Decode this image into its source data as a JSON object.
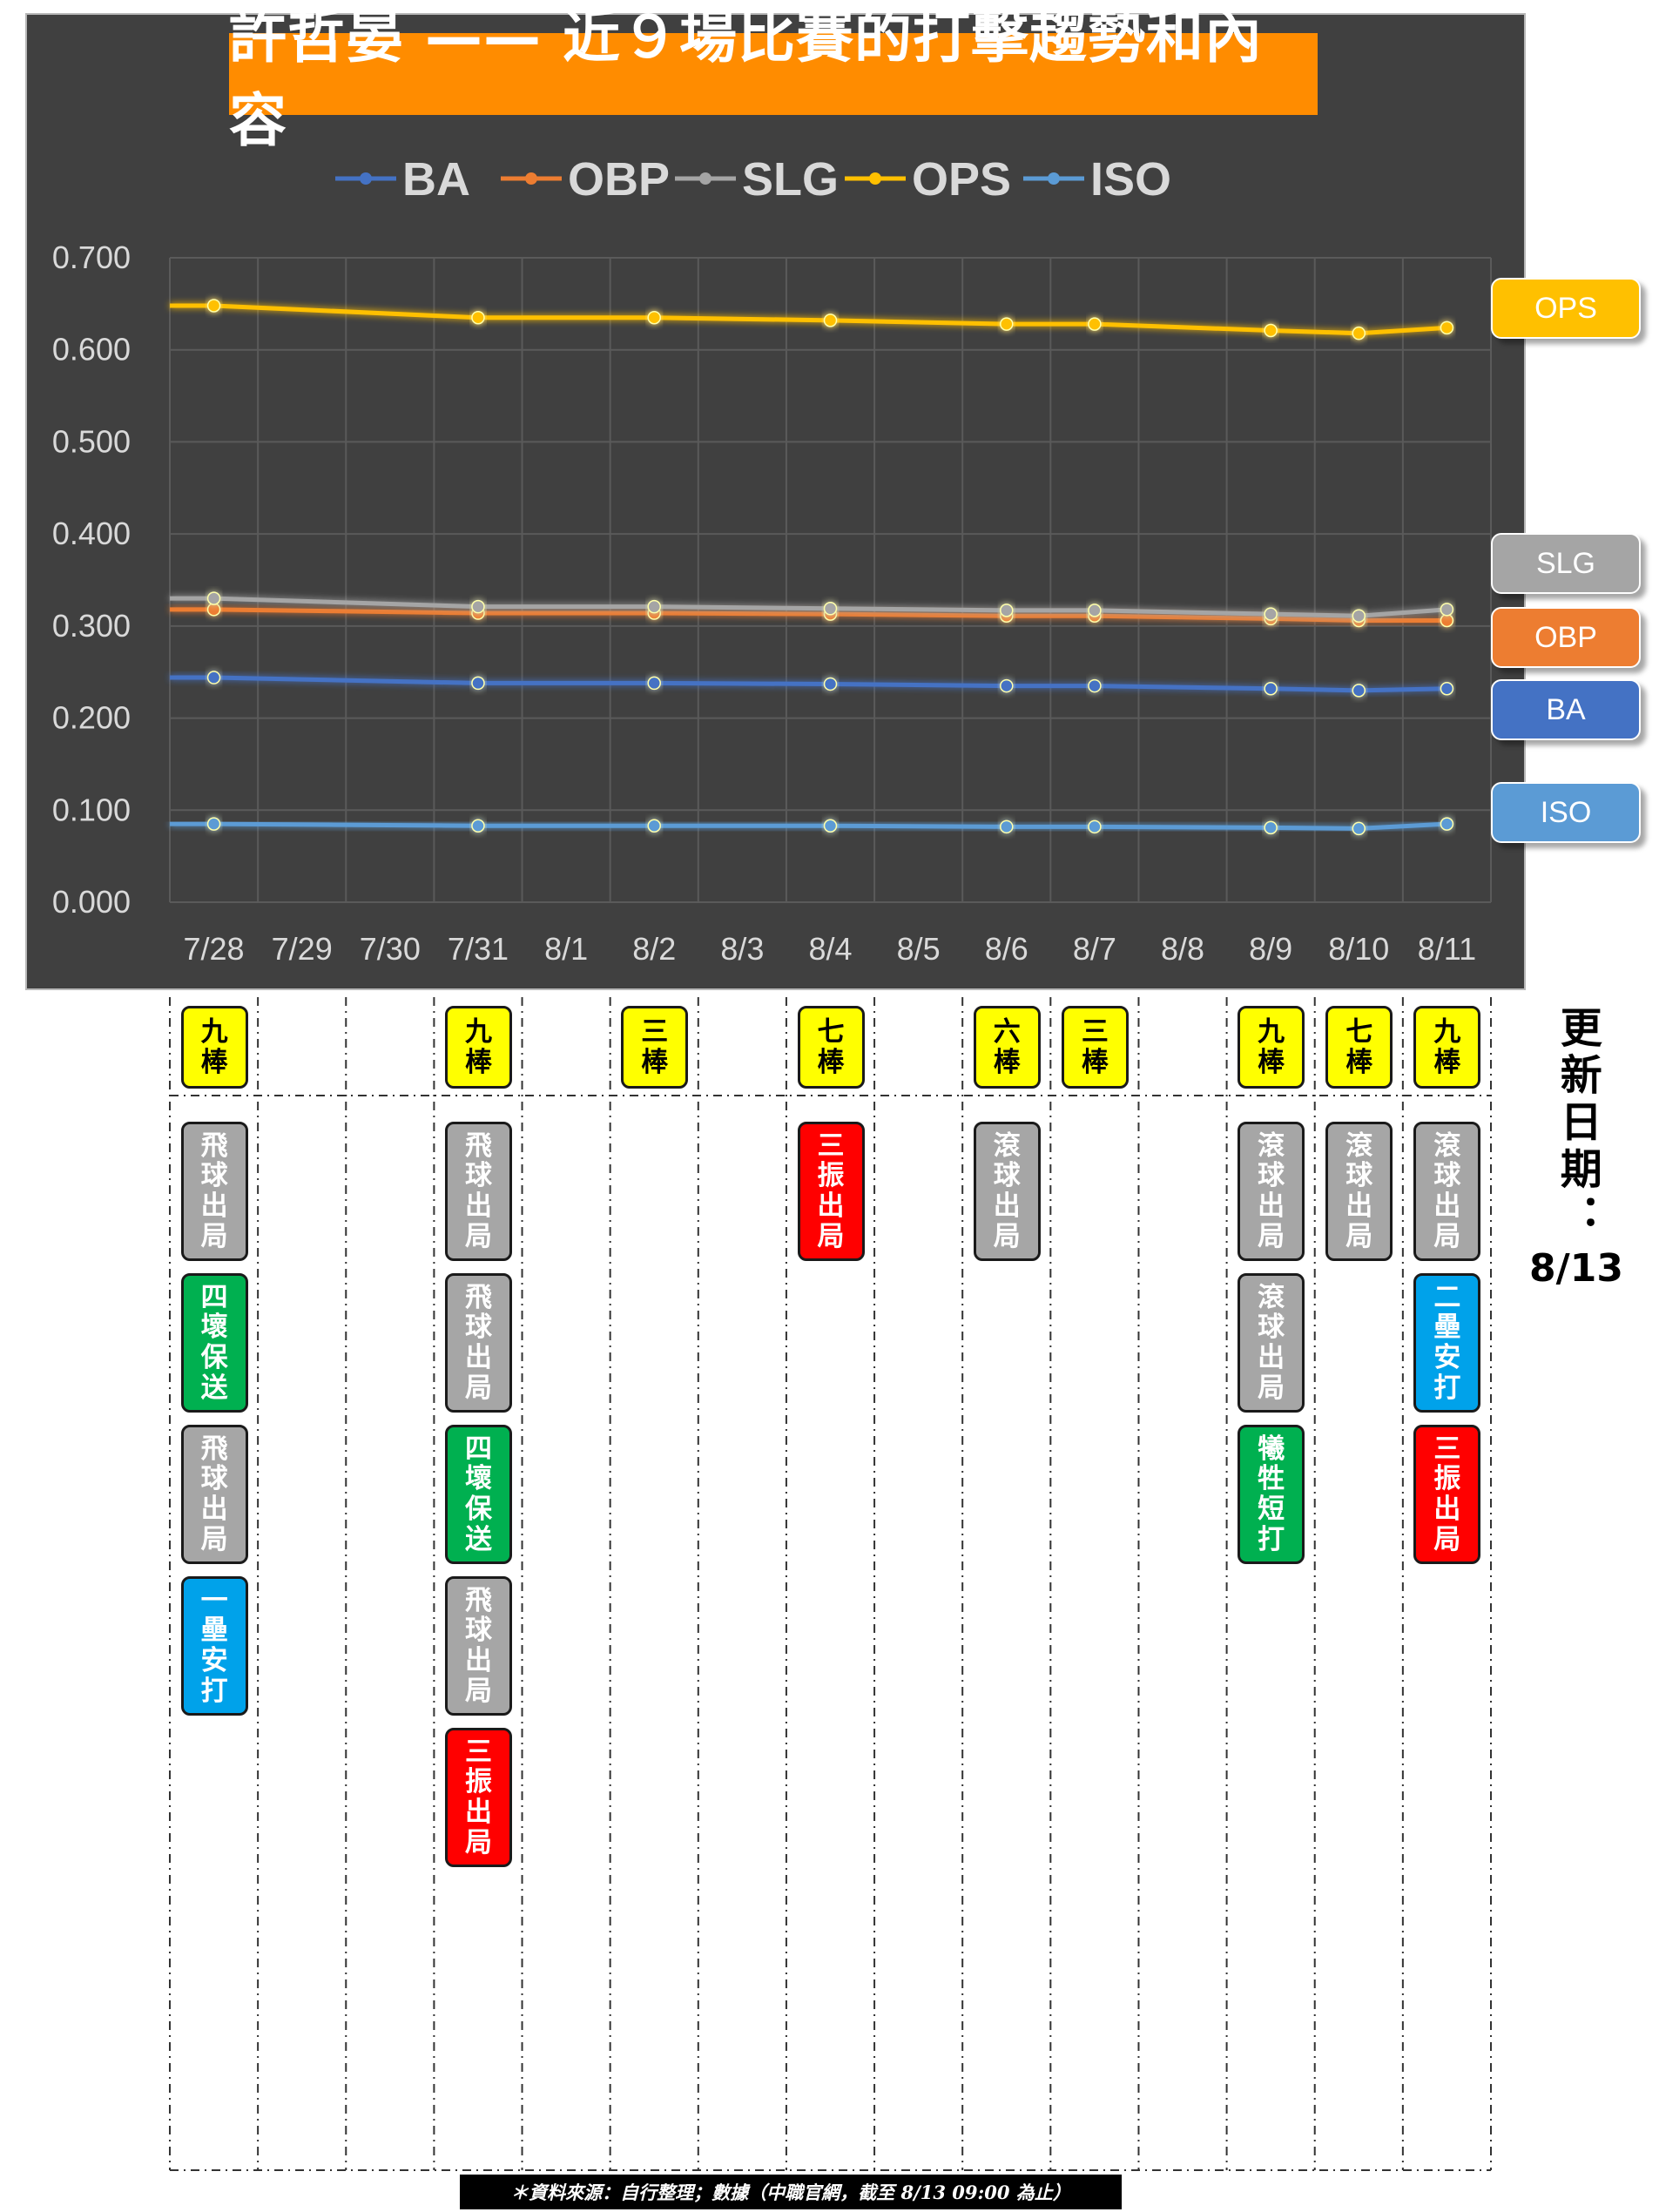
{
  "chart_data": {
    "type": "line",
    "title": "許哲晏 —— 近９場比賽的打擊趨勢和內容",
    "x": [
      "7/28",
      "7/29",
      "7/30",
      "7/31",
      "8/1",
      "8/2",
      "8/3",
      "8/4",
      "8/5",
      "8/6",
      "8/7",
      "8/8",
      "8/9",
      "8/10",
      "8/11"
    ],
    "ylim": [
      0,
      0.7
    ],
    "yticks": [
      "0.000",
      "0.100",
      "0.200",
      "0.300",
      "0.400",
      "0.500",
      "0.600",
      "0.700"
    ],
    "grid": true,
    "legend": "top",
    "series": [
      {
        "name": "BA",
        "color": "#4472c4",
        "values": [
          0.244,
          null,
          null,
          0.238,
          null,
          0.238,
          null,
          0.237,
          null,
          0.235,
          0.235,
          null,
          0.232,
          0.23,
          0.232
        ]
      },
      {
        "name": "OBP",
        "color": "#ed7d31",
        "values": [
          0.318,
          null,
          null,
          0.314,
          null,
          0.314,
          null,
          0.313,
          null,
          0.311,
          0.311,
          null,
          0.308,
          0.306,
          0.306
        ]
      },
      {
        "name": "SLG",
        "color": "#a5a5a5",
        "values": [
          0.33,
          null,
          null,
          0.321,
          null,
          0.321,
          null,
          0.319,
          null,
          0.317,
          0.317,
          null,
          0.313,
          0.311,
          0.318
        ]
      },
      {
        "name": "OPS",
        "color": "#ffc000",
        "values": [
          0.648,
          null,
          null,
          0.635,
          null,
          0.635,
          null,
          0.632,
          null,
          0.628,
          0.628,
          null,
          0.621,
          0.618,
          0.624
        ]
      },
      {
        "name": "ISO",
        "color": "#5b9bd5",
        "values": [
          0.085,
          null,
          null,
          0.083,
          null,
          0.083,
          null,
          0.083,
          null,
          0.082,
          0.082,
          null,
          0.081,
          0.08,
          0.085
        ]
      }
    ],
    "end_labels": [
      {
        "name": "OPS",
        "color": "#ffc000"
      },
      {
        "name": "SLG",
        "color": "#a5a5a5"
      },
      {
        "name": "OBP",
        "color": "#ed7d31"
      },
      {
        "name": "BA",
        "color": "#4472c4"
      },
      {
        "name": "ISO",
        "color": "#5b9bd5"
      }
    ]
  },
  "games": [
    {
      "col": 0,
      "order": "九棒",
      "results": [
        {
          "text": "飛球出局",
          "color": "gray"
        },
        {
          "text": "四壞保送",
          "color": "green"
        },
        {
          "text": "飛球出局",
          "color": "gray"
        },
        {
          "text": "一壘安打",
          "color": "blue"
        }
      ]
    },
    {
      "col": 3,
      "order": "九棒",
      "results": [
        {
          "text": "飛球出局",
          "color": "gray"
        },
        {
          "text": "飛球出局",
          "color": "gray"
        },
        {
          "text": "四壞保送",
          "color": "green"
        },
        {
          "text": "飛球出局",
          "color": "gray"
        },
        {
          "text": "三振出局",
          "color": "red"
        }
      ]
    },
    {
      "col": 5,
      "order": "三棒",
      "results": []
    },
    {
      "col": 7,
      "order": "七棒",
      "results": [
        {
          "text": "三振出局",
          "color": "red"
        }
      ]
    },
    {
      "col": 9,
      "order": "六棒",
      "results": [
        {
          "text": "滾球出局",
          "color": "gray"
        }
      ]
    },
    {
      "col": 10,
      "order": "三棒",
      "results": []
    },
    {
      "col": 12,
      "order": "九棒",
      "results": [
        {
          "text": "滾球出局",
          "color": "gray"
        },
        {
          "text": "滾球出局",
          "color": "gray"
        },
        {
          "text": "犧牲短打",
          "color": "green"
        }
      ]
    },
    {
      "col": 13,
      "order": "七棒",
      "results": [
        {
          "text": "滾球出局",
          "color": "gray"
        }
      ]
    },
    {
      "col": 14,
      "order": "九棒",
      "results": [
        {
          "text": "滾球出局",
          "color": "gray"
        },
        {
          "text": "二壘安打",
          "color": "blue"
        },
        {
          "text": "三振出局",
          "color": "red"
        }
      ]
    }
  ],
  "update_label": "更新日期：",
  "update_date": "8/13",
  "source_note": "＊資料來源：自行整理；數據（中職官網，截至 8/13 09:00 為止）"
}
